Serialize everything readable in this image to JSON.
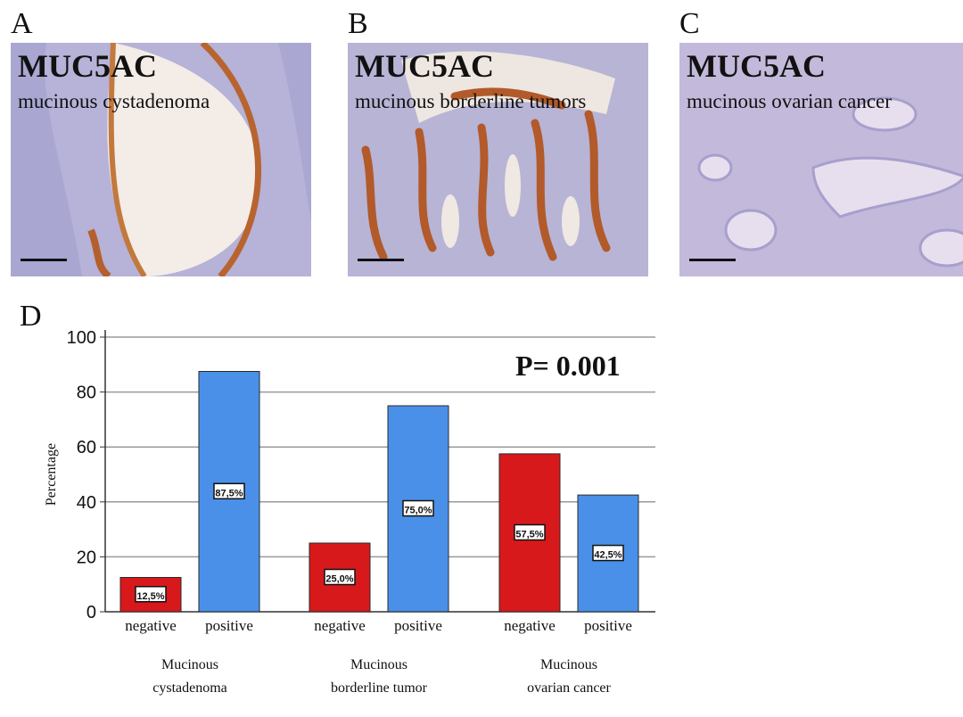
{
  "panels": [
    {
      "letter": "A",
      "marker": "MUC5AC",
      "diagnosis": "mucinous cystadenoma"
    },
    {
      "letter": "B",
      "marker": "MUC5AC",
      "diagnosis": "mucinous borderline tumors"
    },
    {
      "letter": "C",
      "marker": "MUC5AC",
      "diagnosis": "mucinous ovarian cancer"
    }
  ],
  "chart_letter": "D",
  "chart_data": {
    "type": "bar",
    "ylabel": "Percentage",
    "ylim": [
      0,
      100
    ],
    "yticks": [
      0,
      20,
      40,
      60,
      80,
      100
    ],
    "grid": true,
    "annotation": "P= 0.001",
    "groups": [
      {
        "name": "Mucinous cystadenoma",
        "name_lines": [
          "Mucinous",
          "cystadenoma"
        ],
        "bars": [
          {
            "category": "negative",
            "value": 12.5,
            "label": "12,5%"
          },
          {
            "category": "positive",
            "value": 87.5,
            "label": "87,5%"
          }
        ]
      },
      {
        "name": "Mucinous borderline tumor",
        "name_lines": [
          "Mucinous",
          "borderline tumor"
        ],
        "bars": [
          {
            "category": "negative",
            "value": 25.0,
            "label": "25,0%"
          },
          {
            "category": "positive",
            "value": 75.0,
            "label": "75,0%"
          }
        ]
      },
      {
        "name": "Mucinous ovarian cancer",
        "name_lines": [
          "Mucinous",
          "ovarian cancer"
        ],
        "bars": [
          {
            "category": "negative",
            "value": 57.5,
            "label": "57,5%"
          },
          {
            "category": "positive",
            "value": 42.5,
            "label": "42,5%"
          }
        ]
      }
    ],
    "colors": {
      "negative": "#d7191c",
      "positive": "#4a90e8"
    }
  }
}
